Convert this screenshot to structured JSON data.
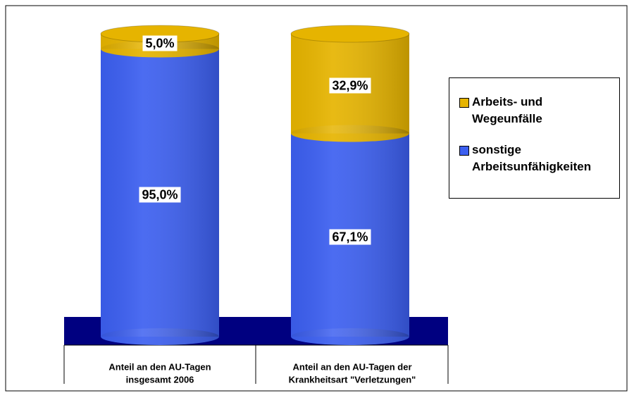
{
  "chart_data": {
    "type": "stacked-cylinder",
    "categories": [
      [
        "Anteil an den AU-Tagen",
        "insgesamt 2006"
      ],
      [
        "Anteil an den AU-Tagen der",
        "Krankheitsart \"Verletzungen\""
      ]
    ],
    "series": [
      {
        "name": "Arbeits- und Wegeunfälle",
        "color": "#e6b400",
        "values": [
          5.0,
          32.9
        ],
        "value_labels": [
          "5,0%",
          "32,9%"
        ]
      },
      {
        "name": "sonstige Arbeitsunfähigkeiten",
        "color": "#3c5ff0",
        "values": [
          95.0,
          67.1
        ],
        "value_labels": [
          "95,0%",
          "67,1%"
        ]
      }
    ],
    "legend": "right"
  }
}
